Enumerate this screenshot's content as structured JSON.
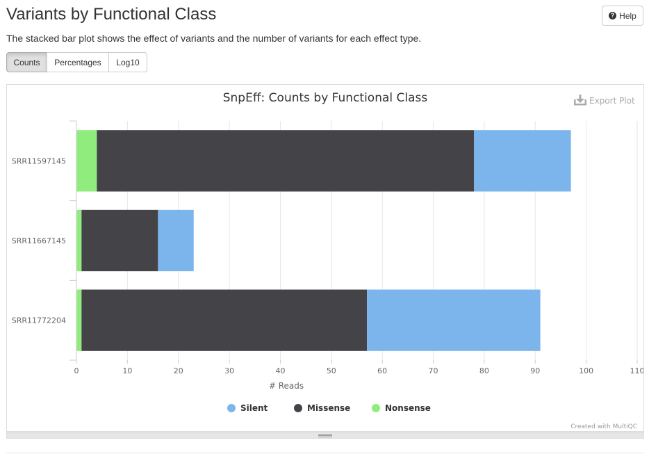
{
  "header": {
    "title": "Variants by Functional Class",
    "help_label": "Help",
    "description": "The stacked bar plot shows the effect of variants and the number of variants for each effect type."
  },
  "toggles": [
    {
      "label": "Counts",
      "active": true
    },
    {
      "label": "Percentages",
      "active": false
    },
    {
      "label": "Log10",
      "active": false
    }
  ],
  "export_label": "Export Plot",
  "credit": "Created with MultiQC",
  "chart_data": {
    "type": "bar",
    "orientation": "horizontal",
    "stacked": true,
    "title": "SnpEff: Counts by Functional Class",
    "xlabel": "# Reads",
    "ylabel": "",
    "xlim": [
      0,
      110
    ],
    "xticks": [
      0,
      10,
      20,
      30,
      40,
      50,
      60,
      70,
      80,
      90,
      100,
      110
    ],
    "grid": true,
    "legend_position": "bottom-center",
    "categories": [
      "SRR11597145",
      "SRR11667145",
      "SRR11772204"
    ],
    "series": [
      {
        "name": "Nonsense",
        "color": "#90ed7d",
        "values": [
          4,
          1,
          1
        ]
      },
      {
        "name": "Missense",
        "color": "#434348",
        "values": [
          74,
          15,
          56
        ]
      },
      {
        "name": "Silent",
        "color": "#7cb5ec",
        "values": [
          19,
          7,
          34
        ]
      }
    ],
    "legend_order": [
      "Silent",
      "Missense",
      "Nonsense"
    ]
  }
}
